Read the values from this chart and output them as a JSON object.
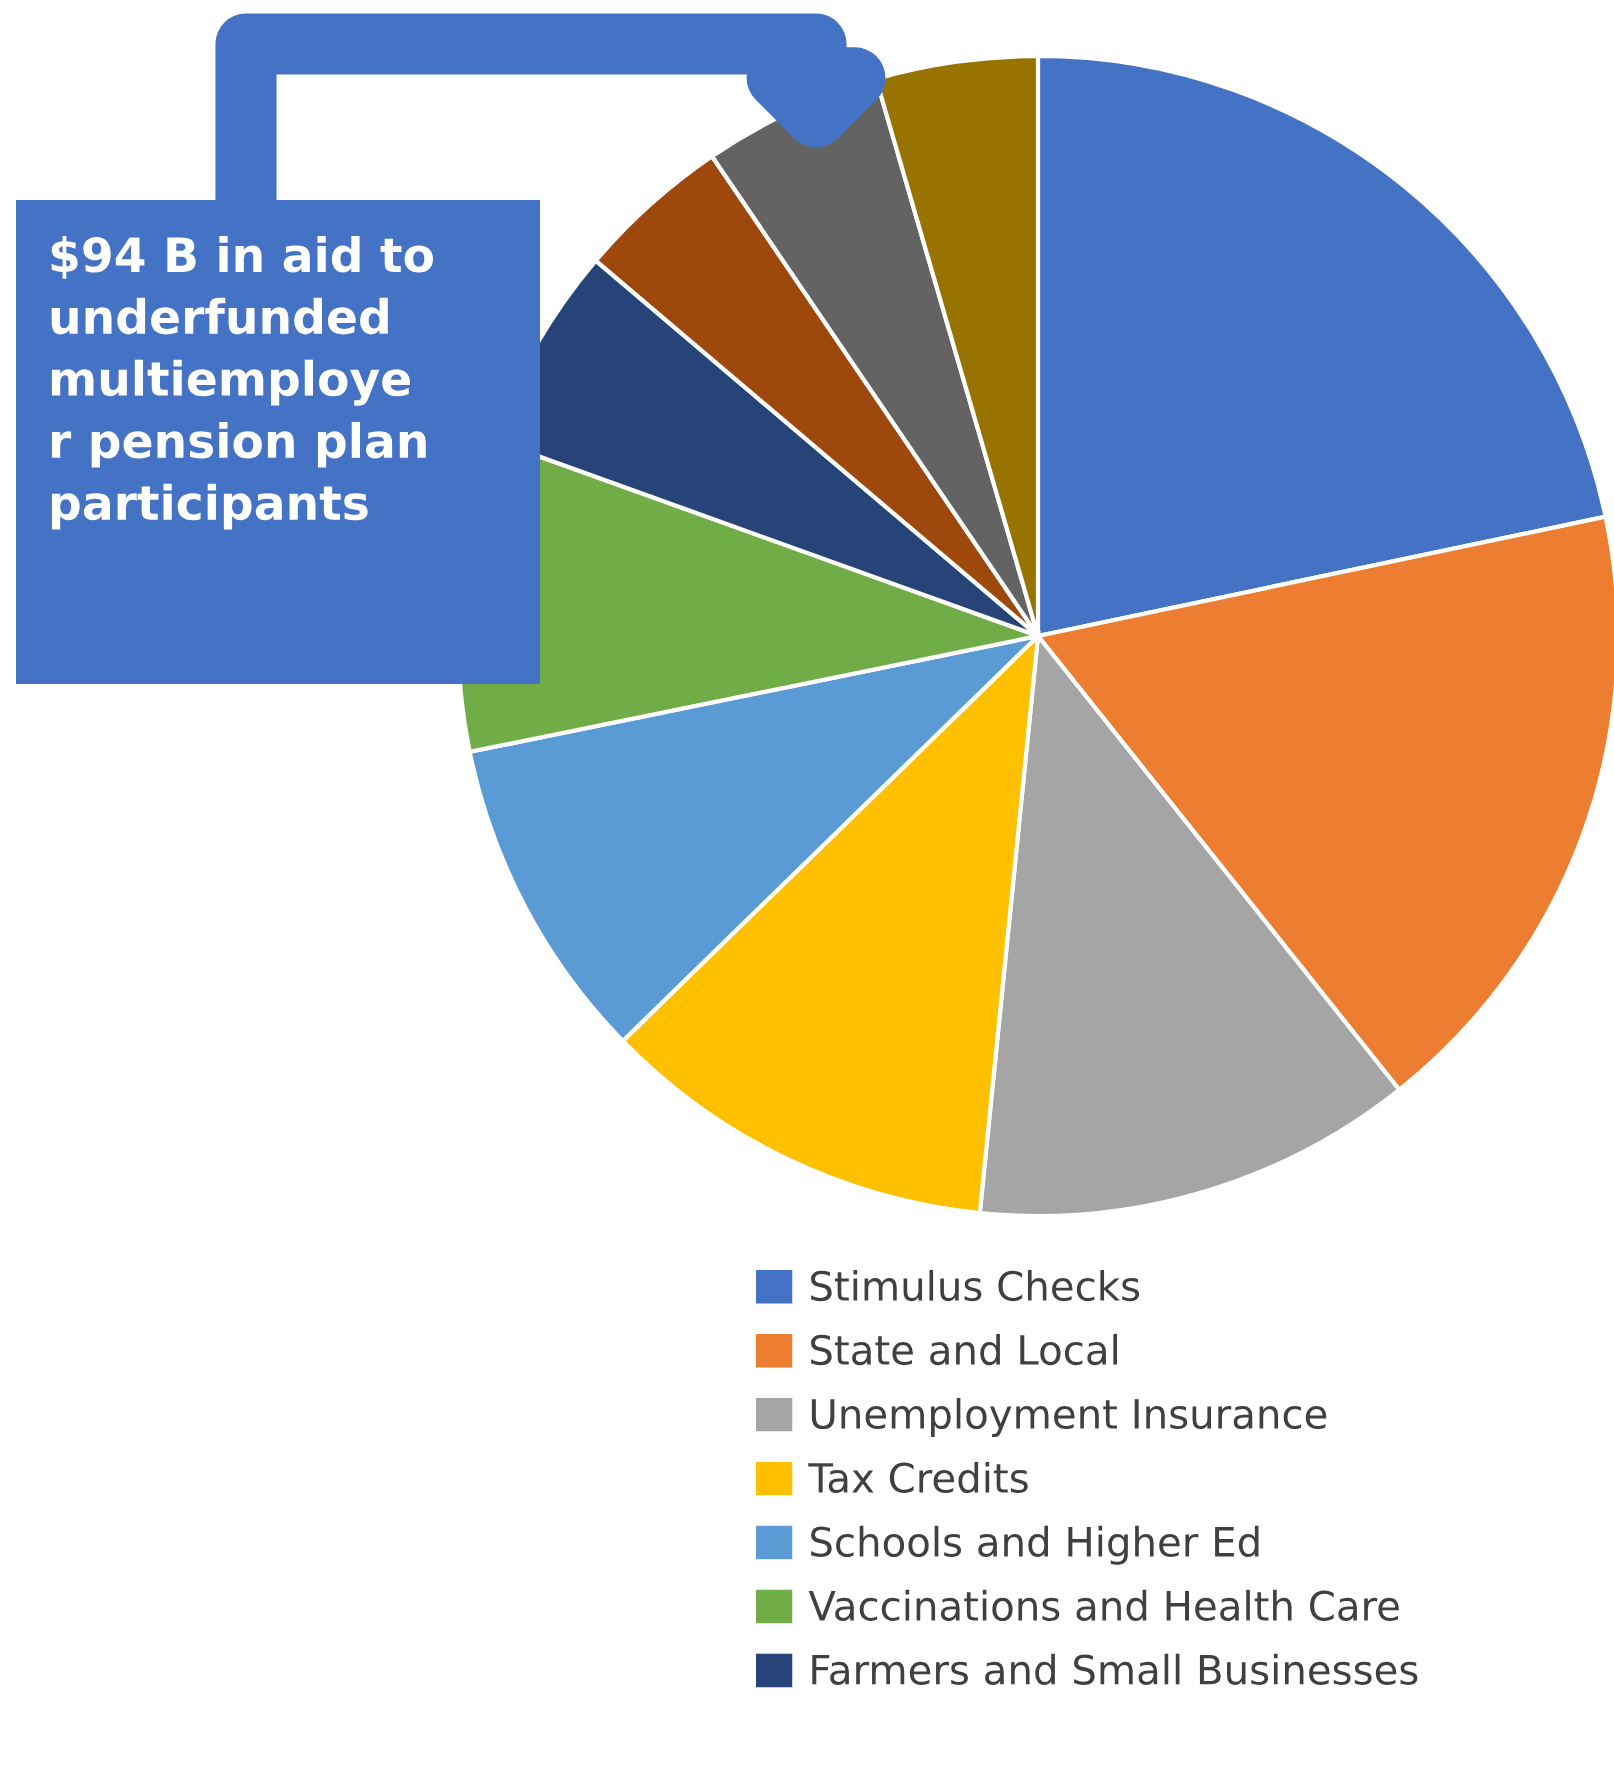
{
  "chart_data": {
    "type": "pie",
    "categories": [
      "Stimulus Checks",
      "State and Local",
      "Unemployment Insurance",
      "Tax Credits",
      "Schools and Higher Ed",
      "Vaccinations and Health Care",
      "Farmers and Small Businesses",
      null,
      null,
      null
    ],
    "values": [
      21.7,
      17.6,
      12.3,
      11.1,
      9.1,
      8.7,
      5.7,
      4.3,
      5.0,
      4.5
    ],
    "colors": [
      "#4472c4",
      "#ed7d31",
      "#a5a5a5",
      "#ffc000",
      "#5b9bd5",
      "#70ad47",
      "#264478",
      "#9e480e",
      "#636363",
      "#997300"
    ],
    "annotations": [
      "$94 B in aid to\nunderfunded\nmultiemploye\nr pension plan\nparticipants"
    ],
    "legend": "bottom"
  }
}
